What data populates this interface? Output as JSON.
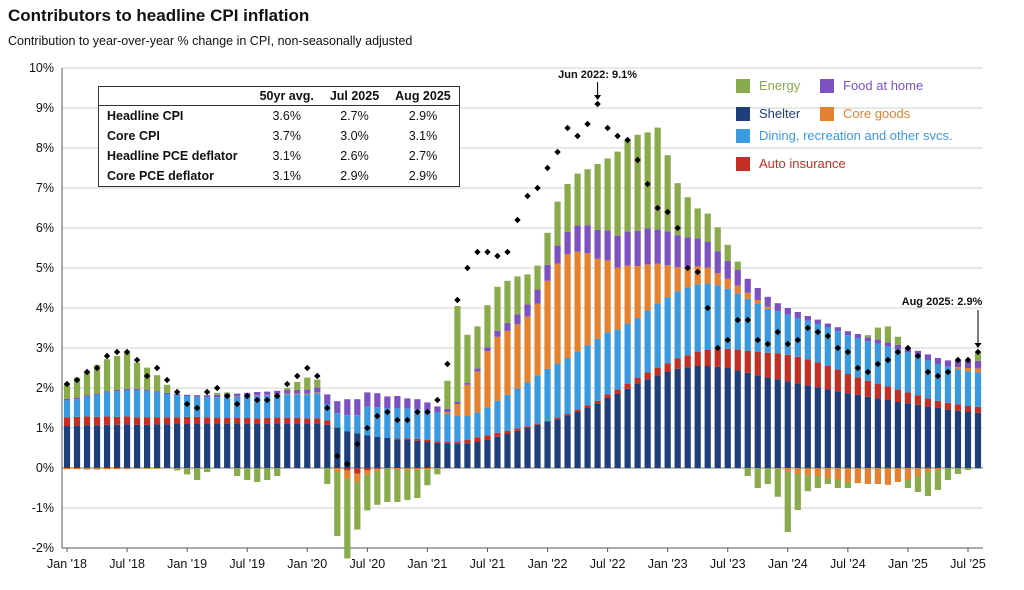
{
  "header": {
    "title": "Contributors to headline CPI inflation",
    "subtitle": "Contribution to year-over-year % change in CPI, non-seasonally adjusted"
  },
  "table": {
    "columns": [
      "50yr avg.",
      "Jul 2025",
      "Aug 2025"
    ],
    "rows": [
      {
        "label": "Headline CPI",
        "values": [
          "3.6%",
          "2.7%",
          "2.9%"
        ]
      },
      {
        "label": "Core CPI",
        "values": [
          "3.7%",
          "3.0%",
          "3.1%"
        ]
      },
      {
        "label": "Headline PCE deflator",
        "values": [
          "3.1%",
          "2.6%",
          "2.7%"
        ]
      },
      {
        "label": "Core PCE deflator",
        "values": [
          "3.1%",
          "2.9%",
          "2.9%"
        ]
      }
    ]
  },
  "legend": {
    "energy": "Energy",
    "food": "Food at home",
    "shelter": "Shelter",
    "core_goods": "Core goods",
    "dining": "Dining, recreation and other svcs.",
    "auto": "Auto insurance"
  },
  "colors": {
    "energy": "#8aab4b",
    "food": "#7b52c0",
    "shelter": "#1f3f7a",
    "core_goods": "#e4822f",
    "dining": "#3a9ae0",
    "auto": "#c42f25",
    "grid": "#d0d0d0"
  },
  "annotations": {
    "peak": "Jun 2022: 9.1%",
    "latest": "Aug 2025: 2.9%"
  },
  "chart_data": {
    "type": "bar",
    "stacked": true,
    "ylim": [
      -2,
      10
    ],
    "y_ticks": [
      "-2%",
      "-1%",
      "0%",
      "1%",
      "2%",
      "3%",
      "4%",
      "5%",
      "6%",
      "7%",
      "8%",
      "9%",
      "10%"
    ],
    "x_tick_labels": [
      "Jan '18",
      "Jul '18",
      "Jan '19",
      "Jul '19",
      "Jan '20",
      "Jul '20",
      "Jan '21",
      "Jul '21",
      "Jan '22",
      "Jul '22",
      "Jan '23",
      "Jul '23",
      "Jan '24",
      "Jul '24",
      "Jan '25",
      "Jul '25"
    ],
    "start_month": "Jan 2018",
    "end_month": "Aug 2025",
    "grid": true,
    "series": [
      {
        "name": "Shelter",
        "key": "shelter",
        "values": [
          1.05,
          1.06,
          1.07,
          1.07,
          1.08,
          1.08,
          1.09,
          1.08,
          1.08,
          1.09,
          1.09,
          1.1,
          1.11,
          1.11,
          1.11,
          1.1,
          1.1,
          1.1,
          1.1,
          1.1,
          1.11,
          1.12,
          1.12,
          1.12,
          1.12,
          1.12,
          1.08,
          1.0,
          0.92,
          0.87,
          0.82,
          0.78,
          0.75,
          0.72,
          0.7,
          0.68,
          0.65,
          0.63,
          0.62,
          0.61,
          0.62,
          0.65,
          0.7,
          0.78,
          0.85,
          0.93,
          1.0,
          1.08,
          1.15,
          1.22,
          1.3,
          1.4,
          1.5,
          1.6,
          1.75,
          1.85,
          1.98,
          2.1,
          2.22,
          2.32,
          2.4,
          2.48,
          2.52,
          2.55,
          2.55,
          2.53,
          2.5,
          2.44,
          2.38,
          2.32,
          2.26,
          2.22,
          2.17,
          2.12,
          2.07,
          2.02,
          1.97,
          1.92,
          1.87,
          1.83,
          1.78,
          1.74,
          1.7,
          1.65,
          1.62,
          1.58,
          1.54,
          1.5,
          1.46,
          1.43,
          1.4,
          1.38
        ]
      },
      {
        "name": "Auto insurance",
        "key": "auto",
        "values": [
          0.22,
          0.22,
          0.22,
          0.21,
          0.21,
          0.2,
          0.2,
          0.19,
          0.19,
          0.18,
          0.18,
          0.17,
          0.17,
          0.17,
          0.16,
          0.16,
          0.15,
          0.15,
          0.15,
          0.14,
          0.14,
          0.14,
          0.13,
          0.13,
          0.12,
          0.12,
          0.11,
          0.02,
          -0.06,
          -0.14,
          -0.06,
          -0.02,
          0.0,
          0.02,
          0.04,
          0.05,
          0.05,
          0.04,
          0.03,
          0.04,
          0.08,
          0.12,
          0.12,
          0.1,
          0.08,
          0.06,
          0.04,
          0.03,
          0.03,
          0.04,
          0.05,
          0.06,
          0.07,
          0.08,
          0.09,
          0.11,
          0.13,
          0.15,
          0.17,
          0.19,
          0.22,
          0.26,
          0.3,
          0.36,
          0.4,
          0.44,
          0.48,
          0.52,
          0.55,
          0.58,
          0.62,
          0.65,
          0.66,
          0.66,
          0.65,
          0.62,
          0.58,
          0.54,
          0.48,
          0.44,
          0.4,
          0.37,
          0.34,
          0.31,
          0.27,
          0.24,
          0.2,
          0.18,
          0.17,
          0.16,
          0.15,
          0.15
        ]
      },
      {
        "name": "Dining, recreation and other svcs.",
        "key": "dining",
        "values": [
          0.42,
          0.44,
          0.5,
          0.55,
          0.6,
          0.64,
          0.66,
          0.68,
          0.66,
          0.62,
          0.58,
          0.55,
          0.52,
          0.5,
          0.5,
          0.51,
          0.52,
          0.53,
          0.54,
          0.56,
          0.56,
          0.57,
          0.59,
          0.59,
          0.6,
          0.63,
          0.4,
          0.35,
          0.4,
          0.45,
          0.72,
          0.74,
          0.74,
          0.76,
          0.75,
          0.74,
          0.74,
          0.72,
          0.7,
          0.65,
          0.6,
          0.62,
          0.7,
          0.8,
          0.9,
          1.0,
          1.1,
          1.2,
          1.3,
          1.35,
          1.4,
          1.45,
          1.5,
          1.55,
          1.55,
          1.5,
          1.5,
          1.5,
          1.55,
          1.6,
          1.65,
          1.68,
          1.7,
          1.68,
          1.66,
          1.6,
          1.5,
          1.4,
          1.3,
          1.2,
          1.1,
          1.05,
          1.0,
          0.97,
          0.96,
          0.96,
          0.96,
          0.96,
          0.97,
          0.98,
          0.99,
          1.0,
          1.0,
          1.01,
          1.0,
          0.98,
          0.96,
          0.92,
          0.9,
          0.88,
          0.87,
          0.86
        ]
      },
      {
        "name": "Core goods",
        "key": "core_goods",
        "values": [
          -0.03,
          -0.03,
          -0.04,
          -0.04,
          -0.03,
          -0.03,
          -0.03,
          -0.02,
          -0.02,
          -0.02,
          -0.01,
          -0.01,
          -0.01,
          0.0,
          0.0,
          0.0,
          0.01,
          0.01,
          0.01,
          0.02,
          0.02,
          0.02,
          0.02,
          0.02,
          0.02,
          0.02,
          0.0,
          -0.1,
          -0.2,
          -0.2,
          -0.1,
          -0.05,
          0.0,
          -0.05,
          -0.05,
          -0.05,
          -0.03,
          -0.01,
          0.05,
          0.3,
          0.78,
          1.02,
          1.4,
          1.6,
          1.6,
          1.6,
          1.65,
          1.8,
          2.2,
          2.5,
          2.6,
          2.5,
          2.3,
          2.0,
          1.8,
          1.55,
          1.45,
          1.3,
          1.15,
          1.0,
          0.8,
          0.6,
          0.5,
          0.45,
          0.4,
          0.3,
          0.25,
          0.2,
          0.15,
          0.1,
          0.05,
          -0.02,
          -0.1,
          -0.15,
          -0.18,
          -0.2,
          -0.25,
          -0.3,
          -0.35,
          -0.38,
          -0.4,
          -0.4,
          -0.42,
          -0.35,
          -0.3,
          -0.2,
          -0.1,
          -0.05,
          0.0,
          0.05,
          0.08,
          0.1
        ]
      },
      {
        "name": "Food at home",
        "key": "food",
        "values": [
          0.04,
          0.04,
          0.03,
          0.03,
          0.03,
          0.03,
          0.03,
          0.03,
          0.03,
          0.03,
          0.03,
          0.03,
          0.03,
          0.04,
          0.05,
          0.06,
          0.07,
          0.07,
          0.08,
          0.08,
          0.08,
          0.08,
          0.09,
          0.09,
          0.1,
          0.12,
          0.25,
          0.3,
          0.4,
          0.4,
          0.35,
          0.35,
          0.3,
          0.3,
          0.25,
          0.25,
          0.2,
          0.15,
          0.08,
          0.05,
          0.05,
          0.08,
          0.1,
          0.15,
          0.2,
          0.25,
          0.3,
          0.35,
          0.4,
          0.45,
          0.55,
          0.65,
          0.7,
          0.72,
          0.75,
          0.8,
          0.85,
          0.88,
          0.9,
          0.85,
          0.85,
          0.8,
          0.75,
          0.7,
          0.65,
          0.55,
          0.45,
          0.4,
          0.35,
          0.3,
          0.25,
          0.2,
          0.17,
          0.15,
          0.12,
          0.11,
          0.1,
          0.1,
          0.1,
          0.1,
          0.1,
          0.1,
          0.1,
          0.11,
          0.12,
          0.13,
          0.14,
          0.15,
          0.16,
          0.17,
          0.18,
          0.19
        ]
      },
      {
        "name": "Energy",
        "key": "energy",
        "values": [
          0.39,
          0.5,
          0.58,
          0.72,
          0.8,
          0.85,
          0.9,
          0.65,
          0.55,
          0.4,
          0.2,
          -0.05,
          -0.15,
          -0.3,
          -0.1,
          0.05,
          0.04,
          -0.2,
          -0.3,
          -0.35,
          -0.3,
          -0.2,
          0.05,
          0.2,
          0.3,
          0.2,
          -0.4,
          -1.6,
          -2.0,
          -1.2,
          -0.9,
          -0.85,
          -0.85,
          -0.8,
          -0.75,
          -0.7,
          -0.4,
          -0.15,
          0.7,
          2.4,
          1.2,
          1.05,
          1.05,
          1.1,
          1.05,
          0.95,
          0.75,
          0.6,
          0.8,
          1.1,
          1.2,
          1.3,
          1.4,
          1.65,
          1.8,
          2.1,
          2.3,
          2.4,
          2.4,
          2.55,
          1.9,
          1.3,
          1.0,
          0.75,
          0.7,
          0.6,
          0.4,
          0.2,
          -0.2,
          -0.5,
          -0.4,
          -0.7,
          -1.5,
          -0.9,
          -0.4,
          -0.3,
          -0.15,
          -0.2,
          -0.15,
          0.0,
          0.05,
          0.3,
          0.4,
          0.2,
          -0.2,
          -0.4,
          -0.6,
          -0.5,
          -0.3,
          -0.15,
          -0.05,
          0.2
        ]
      }
    ],
    "headline_marker": {
      "name": "Headline CPI",
      "values": [
        2.1,
        2.2,
        2.4,
        2.5,
        2.8,
        2.9,
        2.9,
        2.7,
        2.3,
        2.5,
        2.2,
        1.9,
        1.6,
        1.5,
        1.9,
        2.0,
        1.8,
        1.6,
        1.8,
        1.7,
        1.7,
        1.8,
        2.1,
        2.3,
        2.5,
        2.3,
        1.5,
        0.3,
        0.1,
        0.6,
        1.0,
        1.3,
        1.4,
        1.2,
        1.2,
        1.4,
        1.4,
        1.7,
        2.6,
        4.2,
        5.0,
        5.4,
        5.4,
        5.3,
        5.4,
        6.2,
        6.8,
        7.0,
        7.5,
        7.9,
        8.5,
        8.3,
        8.6,
        9.1,
        8.5,
        8.3,
        8.2,
        7.7,
        7.1,
        6.5,
        6.4,
        6.0,
        5.0,
        4.9,
        4.0,
        3.0,
        3.2,
        3.7,
        3.7,
        3.2,
        3.1,
        3.4,
        3.1,
        3.2,
        3.5,
        3.4,
        3.3,
        3.0,
        2.9,
        2.5,
        2.4,
        2.6,
        2.7,
        2.9,
        3.0,
        2.8,
        2.4,
        2.3,
        2.4,
        2.7,
        2.7,
        2.9
      ]
    }
  }
}
